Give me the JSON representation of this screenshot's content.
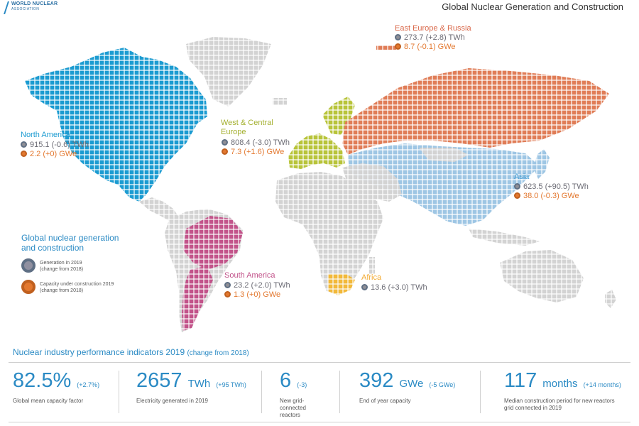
{
  "logo": {
    "line1": "WORLD NUCLEAR",
    "line2": "ASSOCIATION"
  },
  "title": "Global Nuclear Generation and Construction",
  "colors": {
    "north_america": "#1b9bd1",
    "south_america": "#c2538a",
    "west_central_europe": "#b8c43a",
    "east_europe_russia": "#e07d57",
    "asia": "#9ec6e4",
    "africa": "#f2b93a",
    "other": "#d3d3d3"
  },
  "regions": [
    {
      "id": "north-america",
      "name": "North America",
      "generation": "915.1 (-0.6) TWh",
      "capacity": "2.2 (+0) GWe"
    },
    {
      "id": "west-central-europe",
      "name_line1": "West & Central",
      "name_line2": "Europe",
      "generation": "808.4 (-3.0) TWh",
      "capacity": "7.3 (+1.6) GWe"
    },
    {
      "id": "east-europe-russia",
      "name": "East Europe & Russia",
      "generation": "273.7 (+2.8) TWh",
      "capacity": "8.7 (-0.1) GWe"
    },
    {
      "id": "asia",
      "name": "Asia",
      "generation": "623.5 (+90.5) TWh",
      "capacity": "38.0 (-0.3) GWe"
    },
    {
      "id": "south-america",
      "name": "South America",
      "generation": "23.2 (+2.0) TWh",
      "capacity": "1.3 (+0) GWe"
    },
    {
      "id": "africa",
      "name": "Africa",
      "generation": "13.6 (+3.0) TWh"
    }
  ],
  "legend": {
    "title_line1": "Global nuclear generation",
    "title_line2": "and construction",
    "generation_line1": "Generation in 2019",
    "generation_line2": "(change from 2018)",
    "capacity_line1": "Capacity under construction 2019",
    "capacity_line2": "(change from 2018)"
  },
  "performance": {
    "title": "Nuclear industry performance indicators 2019",
    "title_note": "(change from 2018)",
    "kpis": [
      {
        "value": "82.5%",
        "unit": "",
        "change": "(+2.7%)",
        "desc_lines": [
          "Global mean capacity factor"
        ]
      },
      {
        "value": "2657",
        "unit": "TWh",
        "change": "(+95 TWh)",
        "desc_lines": [
          "Electricity generated in 2019"
        ]
      },
      {
        "value": "6",
        "unit": "",
        "change": "(-3)",
        "desc_lines": [
          "New grid-",
          "connected",
          "reactors"
        ]
      },
      {
        "value": "392",
        "unit": "GWe",
        "change": "(-5 GWe)",
        "desc_lines": [
          "End of year capacity"
        ]
      },
      {
        "value": "117",
        "unit": "months",
        "change": "(+14 months)",
        "desc_lines": [
          "Median construction period for new reactors",
          "grid connected in 2019"
        ]
      }
    ]
  }
}
